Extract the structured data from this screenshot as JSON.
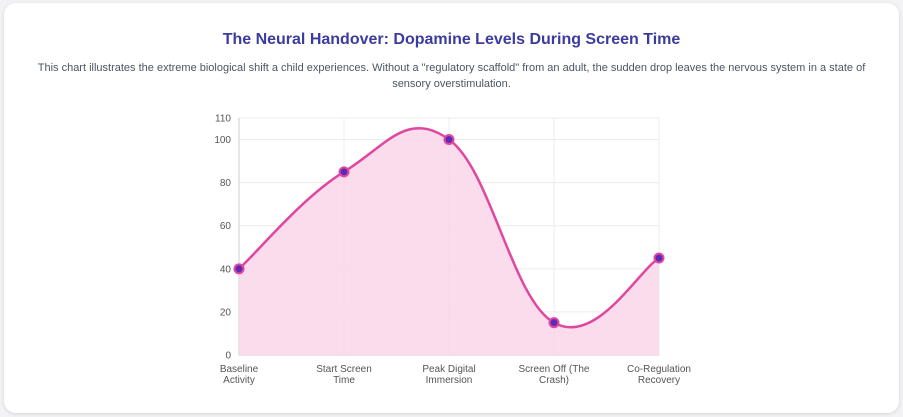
{
  "page": {
    "title": "The Neural Handover: Dopamine Levels During Screen Time",
    "subtitle": "This chart illustrates the extreme biological shift a child experiences. Without a \"regulatory scaffold\" from an adult, the sudden drop leaves the nervous system in a state of sensory overstimulation."
  },
  "chart_data": {
    "type": "area",
    "categories": [
      [
        "Baseline",
        "Activity"
      ],
      [
        "Start Screen",
        "Time"
      ],
      [
        "Peak Digital",
        "Immersion"
      ],
      [
        "Screen Off (The",
        "Crash)"
      ],
      [
        "Co-Regulation",
        "Recovery"
      ]
    ],
    "series": [
      {
        "values": [
          40,
          85,
          100,
          15,
          45
        ]
      }
    ],
    "ylim": [
      0,
      110
    ],
    "yticks": [
      0,
      20,
      40,
      60,
      80,
      100,
      110
    ],
    "grid": true,
    "colors": {
      "line": "#e0479e",
      "fill": "#f9d6ea",
      "point": "#5b2bb8",
      "point_border": "#e0479e",
      "grid": "#ececec",
      "axis": "#cfcfcf"
    }
  }
}
